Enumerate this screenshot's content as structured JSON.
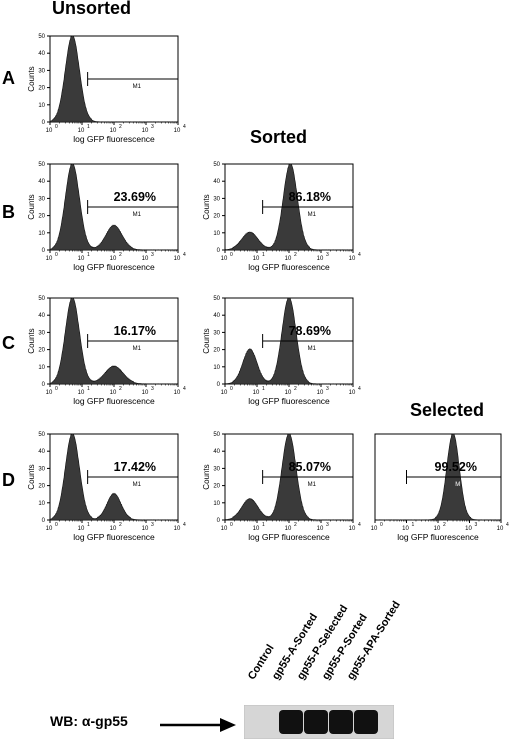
{
  "column_titles": {
    "unsorted": "Unsorted",
    "sorted": "Sorted",
    "selected": "Selected"
  },
  "row_labels": {
    "A": "A",
    "B": "B",
    "C": "C",
    "D": "D"
  },
  "chart_data": [
    {
      "panel": "A",
      "type": "area",
      "ylabel": "Counts",
      "xlabel": "log GFP fluorescence",
      "xscale": "log",
      "xlim": [
        1,
        10000
      ],
      "ylim": [
        0,
        50
      ],
      "yticks": [
        "0",
        "10",
        "20",
        "30",
        "40",
        "50"
      ],
      "xticks": [
        "10",
        "10",
        "10",
        "10",
        "10"
      ],
      "xtick_exps": [
        "0",
        "1",
        "2",
        "3",
        "4"
      ],
      "gate_label": "M1",
      "gate_range": [
        15,
        10000
      ],
      "percent": "",
      "peaks": [
        {
          "x": 5,
          "height": 50,
          "width": 0.22
        }
      ]
    },
    {
      "panel": "B-unsorted",
      "type": "area",
      "ylabel": "Counts",
      "xlabel": "log GFP fluorescence",
      "xscale": "log",
      "xlim": [
        1,
        10000
      ],
      "ylim": [
        0,
        50
      ],
      "yticks": [
        "0",
        "10",
        "20",
        "30",
        "40",
        "50"
      ],
      "xticks": [
        "10",
        "10",
        "10",
        "10",
        "10"
      ],
      "xtick_exps": [
        "0",
        "1",
        "2",
        "3",
        "4"
      ],
      "gate_label": "M1",
      "gate_range": [
        15,
        10000
      ],
      "percent": "23.69%",
      "peaks": [
        {
          "x": 5,
          "height": 50,
          "width": 0.22
        },
        {
          "x": 100,
          "height": 14,
          "width": 0.25
        }
      ]
    },
    {
      "panel": "B-sorted",
      "type": "area",
      "ylabel": "Counts",
      "xlabel": "log GFP fluorescence",
      "xscale": "log",
      "xlim": [
        1,
        10000
      ],
      "ylim": [
        0,
        50
      ],
      "yticks": [
        "0",
        "10",
        "20",
        "30",
        "40",
        "50"
      ],
      "xticks": [
        "10",
        "10",
        "10",
        "10",
        "10"
      ],
      "xtick_exps": [
        "0",
        "1",
        "2",
        "3",
        "4"
      ],
      "gate_label": "M1",
      "gate_range": [
        15,
        10000
      ],
      "percent": "86.18%",
      "peaks": [
        {
          "x": 6,
          "height": 10,
          "width": 0.25
        },
        {
          "x": 110,
          "height": 50,
          "width": 0.22
        }
      ]
    },
    {
      "panel": "C-unsorted",
      "type": "area",
      "ylabel": "Counts",
      "xlabel": "log GFP fluorescence",
      "xscale": "log",
      "xlim": [
        1,
        10000
      ],
      "ylim": [
        0,
        50
      ],
      "yticks": [
        "0",
        "10",
        "20",
        "30",
        "40",
        "50"
      ],
      "xticks": [
        "10",
        "10",
        "10",
        "10",
        "10"
      ],
      "xtick_exps": [
        "0",
        "1",
        "2",
        "3",
        "4"
      ],
      "gate_label": "M1",
      "gate_range": [
        15,
        10000
      ],
      "percent": "16.17%",
      "peaks": [
        {
          "x": 5,
          "height": 50,
          "width": 0.22
        },
        {
          "x": 100,
          "height": 10,
          "width": 0.28
        }
      ]
    },
    {
      "panel": "C-sorted",
      "type": "area",
      "ylabel": "Counts",
      "xlabel": "log GFP fluorescence",
      "xscale": "log",
      "xlim": [
        1,
        10000
      ],
      "ylim": [
        0,
        50
      ],
      "yticks": [
        "0",
        "10",
        "20",
        "30",
        "40",
        "50"
      ],
      "xticks": [
        "10",
        "10",
        "10",
        "10",
        "10"
      ],
      "xtick_exps": [
        "0",
        "1",
        "2",
        "3",
        "4"
      ],
      "gate_label": "M1",
      "gate_range": [
        15,
        10000
      ],
      "percent": "78.69%",
      "peaks": [
        {
          "x": 6,
          "height": 20,
          "width": 0.22
        },
        {
          "x": 100,
          "height": 50,
          "width": 0.22
        }
      ]
    },
    {
      "panel": "D-unsorted",
      "type": "area",
      "ylabel": "Counts",
      "xlabel": "log GFP fluorescence",
      "xscale": "log",
      "xlim": [
        1,
        10000
      ],
      "ylim": [
        0,
        50
      ],
      "yticks": [
        "0",
        "10",
        "20",
        "30",
        "40",
        "50"
      ],
      "xticks": [
        "10",
        "10",
        "10",
        "10",
        "10"
      ],
      "xtick_exps": [
        "0",
        "1",
        "2",
        "3",
        "4"
      ],
      "gate_label": "M1",
      "gate_range": [
        15,
        10000
      ],
      "percent": "17.42%",
      "peaks": [
        {
          "x": 5,
          "height": 50,
          "width": 0.22
        },
        {
          "x": 100,
          "height": 15,
          "width": 0.22
        }
      ]
    },
    {
      "panel": "D-sorted",
      "type": "area",
      "ylabel": "Counts",
      "xlabel": "log GFP fluorescence",
      "xscale": "log",
      "xlim": [
        1,
        10000
      ],
      "ylim": [
        0,
        50
      ],
      "yticks": [
        "0",
        "10",
        "20",
        "30",
        "40",
        "50"
      ],
      "xticks": [
        "10",
        "10",
        "10",
        "10",
        "10"
      ],
      "xtick_exps": [
        "0",
        "1",
        "2",
        "3",
        "4"
      ],
      "gate_label": "M1",
      "gate_range": [
        15,
        10000
      ],
      "percent": "85.07%",
      "peaks": [
        {
          "x": 6,
          "height": 12,
          "width": 0.25
        },
        {
          "x": 100,
          "height": 50,
          "width": 0.22
        }
      ]
    },
    {
      "panel": "D-selected",
      "type": "area",
      "ylabel": "",
      "xlabel": "log GFP fluorescence",
      "xscale": "log",
      "xlim": [
        1,
        10000
      ],
      "ylim": [
        0,
        50
      ],
      "yticks": [],
      "xticks": [
        "10",
        "10",
        "10",
        "10",
        "10"
      ],
      "xtick_exps": [
        "0",
        "1",
        "2",
        "3",
        "4"
      ],
      "gate_label": "M",
      "gate_range": [
        10,
        10000
      ],
      "percent": "99.52%",
      "peaks": [
        {
          "x": 300,
          "height": 50,
          "width": 0.2
        }
      ]
    }
  ],
  "western_blot": {
    "label_prefix": "WB: ",
    "label_symbol": "α",
    "label_suffix": "-gp55",
    "lanes": [
      "Control",
      "gp55-A-Sorted",
      "gp55-P-Selected",
      "gp55-P-Sorted",
      "gp55-APA-Sorted"
    ],
    "band_present": [
      false,
      true,
      true,
      true,
      true
    ]
  }
}
